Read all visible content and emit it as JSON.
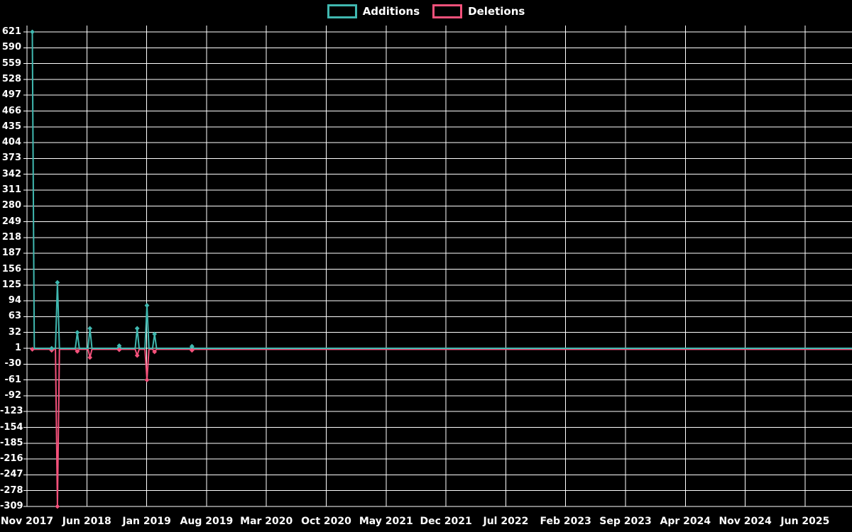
{
  "chart_data": {
    "type": "line",
    "title": "",
    "legend_position": "top-center",
    "background_color": "#000000",
    "grid_color": "#ffffff",
    "text_color": "#ffffff",
    "grid": true,
    "x_ticks": [
      "Nov 2017",
      "Jun 2018",
      "Jan 2019",
      "Aug 2019",
      "Mar 2020",
      "Oct 2020",
      "May 2021",
      "Dec 2021",
      "Jul 2022",
      "Feb 2023",
      "Sep 2023",
      "Apr 2024",
      "Nov 2024",
      "Jun 2025"
    ],
    "x_tick_interval_months": 7,
    "y_ticks": [
      621,
      590,
      559,
      528,
      497,
      466,
      435,
      404,
      373,
      342,
      311,
      280,
      249,
      218,
      187,
      156,
      125,
      94,
      63,
      32,
      1,
      -30,
      -61,
      -92,
      -123,
      -154,
      -185,
      -216,
      -247,
      -278,
      -309
    ],
    "ylim": [
      -309,
      621
    ],
    "x_range": {
      "start": "2017-11-01",
      "end": "2025-11-15"
    },
    "marker": "diamond",
    "series": [
      {
        "name": "Additions",
        "color": "#40b8b0",
        "baseline": 1,
        "points": [
          {
            "date": "2017-11-20",
            "value": 621
          },
          {
            "date": "2018-01-28",
            "value": 1
          },
          {
            "date": "2018-02-18",
            "value": 130
          },
          {
            "date": "2018-04-28",
            "value": 32
          },
          {
            "date": "2018-06-12",
            "value": 40
          },
          {
            "date": "2018-09-25",
            "value": 6
          },
          {
            "date": "2018-11-28",
            "value": 40
          },
          {
            "date": "2019-01-02",
            "value": 85
          },
          {
            "date": "2019-01-29",
            "value": 29
          },
          {
            "date": "2019-06-10",
            "value": 5
          }
        ]
      },
      {
        "name": "Deletions",
        "color": "#f4517b",
        "baseline": -1,
        "points": [
          {
            "date": "2017-11-20",
            "value": -1
          },
          {
            "date": "2018-01-28",
            "value": -3
          },
          {
            "date": "2018-02-18",
            "value": -309
          },
          {
            "date": "2018-04-28",
            "value": -5
          },
          {
            "date": "2018-06-12",
            "value": -17
          },
          {
            "date": "2018-09-25",
            "value": -2
          },
          {
            "date": "2018-11-28",
            "value": -13
          },
          {
            "date": "2019-01-02",
            "value": -61
          },
          {
            "date": "2019-01-29",
            "value": -6
          },
          {
            "date": "2019-06-10",
            "value": -3
          }
        ]
      }
    ]
  }
}
